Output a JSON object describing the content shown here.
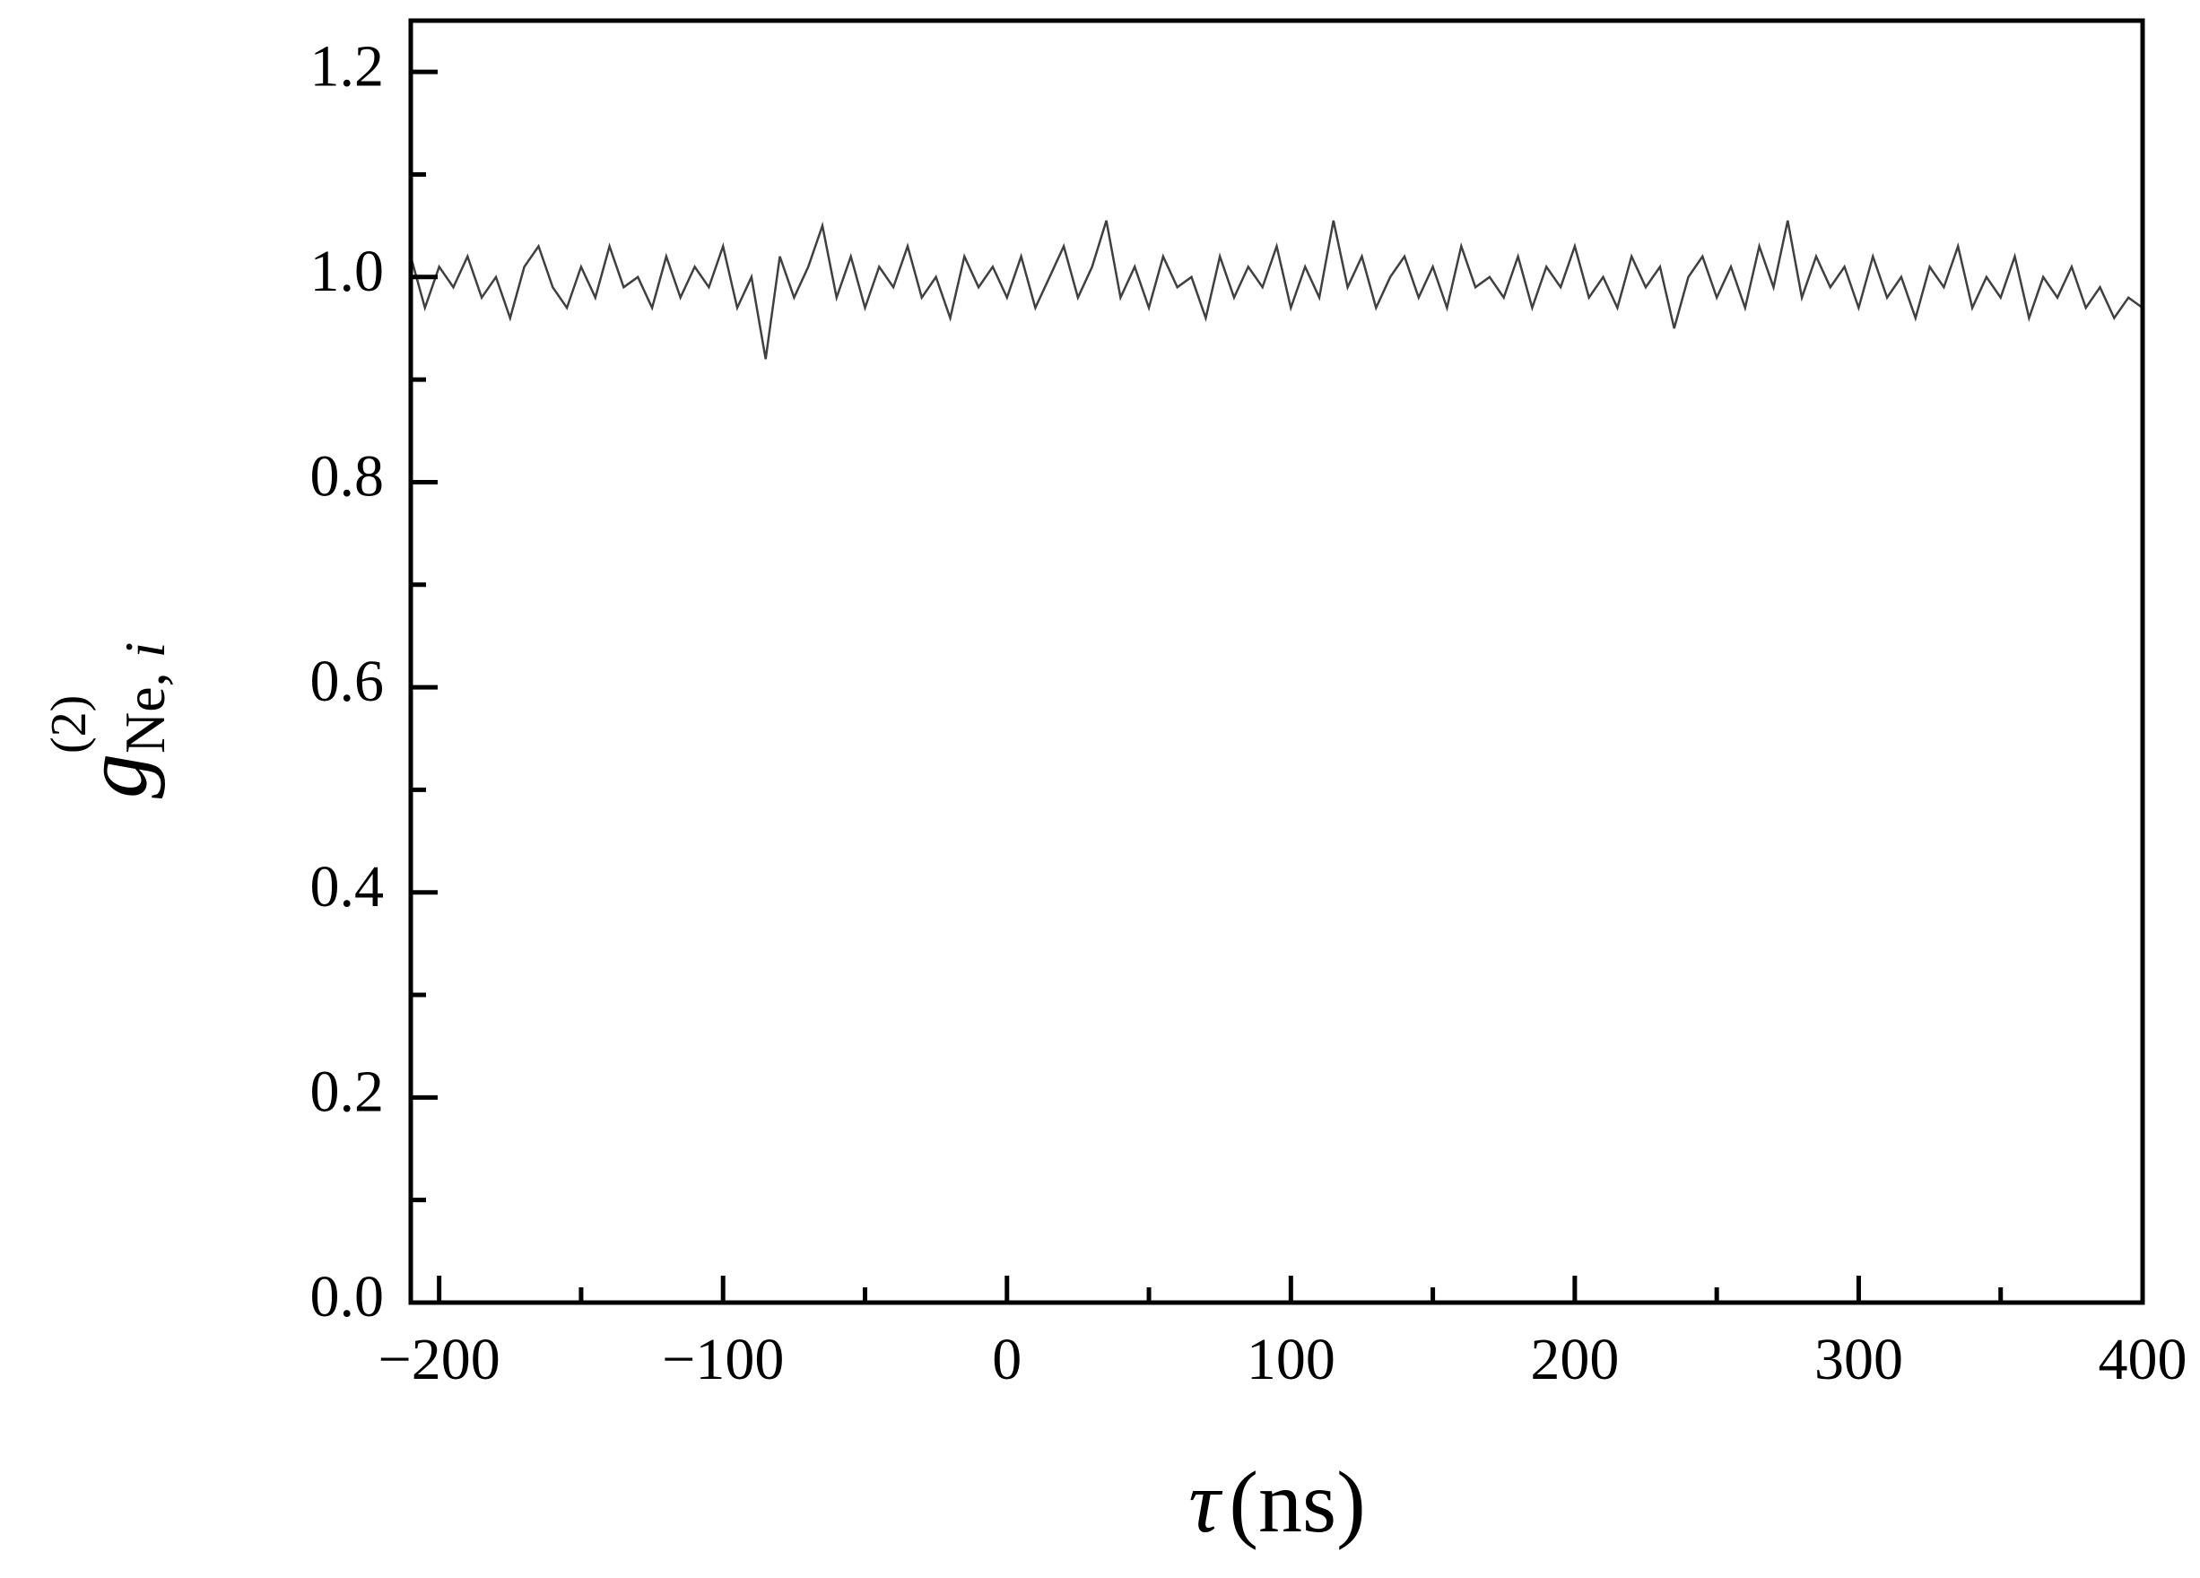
{
  "chart_data": {
    "type": "line",
    "xlabel": {
      "symbol": "τ",
      "unit": "(ns)"
    },
    "ylabel": {
      "symbol": "g",
      "superscript": "(2)",
      "subscript": "Ne, ",
      "subscript_italic": "i"
    },
    "color": "#404040",
    "x": [
      -210,
      -205,
      -200,
      -195,
      -190,
      -185,
      -180,
      -175,
      -170,
      -165,
      -160,
      -155,
      -150,
      -145,
      -140,
      -135,
      -130,
      -125,
      -120,
      -115,
      -110,
      -105,
      -100,
      -95,
      -90,
      -85,
      -80,
      -75,
      -70,
      -65,
      -60,
      -55,
      -50,
      -45,
      -40,
      -35,
      -30,
      -25,
      -20,
      -15,
      -10,
      -5,
      0,
      5,
      10,
      15,
      20,
      25,
      30,
      35,
      40,
      45,
      50,
      55,
      60,
      65,
      70,
      75,
      80,
      85,
      90,
      95,
      100,
      105,
      110,
      115,
      120,
      125,
      130,
      135,
      140,
      145,
      150,
      155,
      160,
      165,
      170,
      175,
      180,
      185,
      190,
      195,
      200,
      205,
      210,
      215,
      220,
      225,
      230,
      235,
      240,
      245,
      250,
      255,
      260,
      265,
      270,
      275,
      280,
      285,
      290,
      295,
      300,
      305,
      310,
      315,
      320,
      325,
      330,
      335,
      340,
      345,
      350,
      355,
      360,
      365,
      370,
      375,
      380,
      385,
      390,
      395,
      400
    ],
    "values": [
      1.02,
      0.97,
      1.01,
      0.99,
      1.02,
      0.98,
      1.0,
      0.96,
      1.01,
      1.03,
      0.99,
      0.97,
      1.01,
      0.98,
      1.03,
      0.99,
      1.0,
      0.97,
      1.02,
      0.98,
      1.01,
      0.99,
      1.03,
      0.97,
      1.0,
      0.92,
      1.02,
      0.98,
      1.01,
      1.05,
      0.98,
      1.02,
      0.97,
      1.01,
      0.99,
      1.03,
      0.98,
      1.0,
      0.96,
      1.02,
      0.99,
      1.01,
      0.98,
      1.02,
      0.97,
      1.0,
      1.03,
      0.98,
      1.01,
      1.055,
      0.98,
      1.01,
      0.97,
      1.02,
      0.99,
      1.0,
      0.96,
      1.02,
      0.98,
      1.01,
      0.99,
      1.03,
      0.97,
      1.01,
      0.98,
      1.055,
      0.99,
      1.02,
      0.97,
      1.0,
      1.02,
      0.98,
      1.01,
      0.97,
      1.03,
      0.99,
      1.0,
      0.98,
      1.02,
      0.97,
      1.01,
      0.99,
      1.03,
      0.98,
      1.0,
      0.97,
      1.02,
      0.99,
      1.01,
      0.95,
      1.0,
      1.02,
      0.98,
      1.01,
      0.97,
      1.03,
      0.99,
      1.055,
      0.98,
      1.02,
      0.99,
      1.01,
      0.97,
      1.02,
      0.98,
      1.0,
      0.96,
      1.01,
      0.99,
      1.03,
      0.97,
      1.0,
      0.98,
      1.02,
      0.96,
      1.0,
      0.98,
      1.01,
      0.97,
      0.99,
      0.96,
      0.98,
      0.97
    ],
    "xlim": [
      -210,
      400
    ],
    "ylim": [
      0,
      1.25
    ],
    "xticks": [
      {
        "value": -200,
        "label": "−200"
      },
      {
        "value": -100,
        "label": "−100"
      },
      0,
      100,
      200,
      300,
      400
    ],
    "xminorticks": [
      -150,
      -50,
      50,
      150,
      250,
      350
    ],
    "yticks": [
      {
        "value": 0,
        "label": "0.0"
      },
      0.2,
      0.4,
      0.6,
      0.8,
      {
        "value": 1,
        "label": "1.0"
      },
      1.2
    ],
    "yminorticks": [
      0.1,
      0.3,
      0.5,
      0.7,
      0.9,
      1.1
    ]
  }
}
